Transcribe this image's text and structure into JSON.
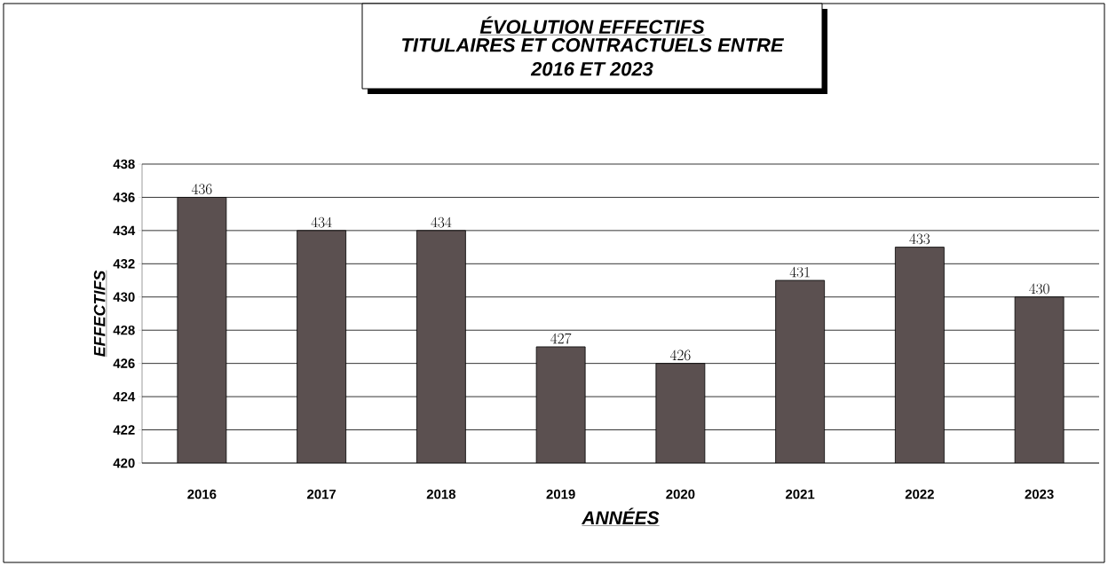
{
  "chart_data": {
    "type": "bar",
    "title": "ÉVOLUTION EFFECTIFS",
    "subtitle": "TITULAIRES ET CONTRACTUELS ENTRE  2016  ET  2023",
    "xlabel": "ANNÉES",
    "ylabel": "EFFECTIFS",
    "categories": [
      "2016",
      "2017",
      "2018",
      "2019",
      "2020",
      "2021",
      "2022",
      "2023"
    ],
    "values": [
      436,
      434,
      434,
      427,
      426,
      431,
      433,
      430
    ],
    "color": "#5b5050",
    "ylim": [
      420,
      438
    ],
    "yticks": [
      420,
      422,
      424,
      426,
      428,
      430,
      432,
      434,
      436,
      438
    ],
    "grid": "y",
    "data_labels": true
  }
}
